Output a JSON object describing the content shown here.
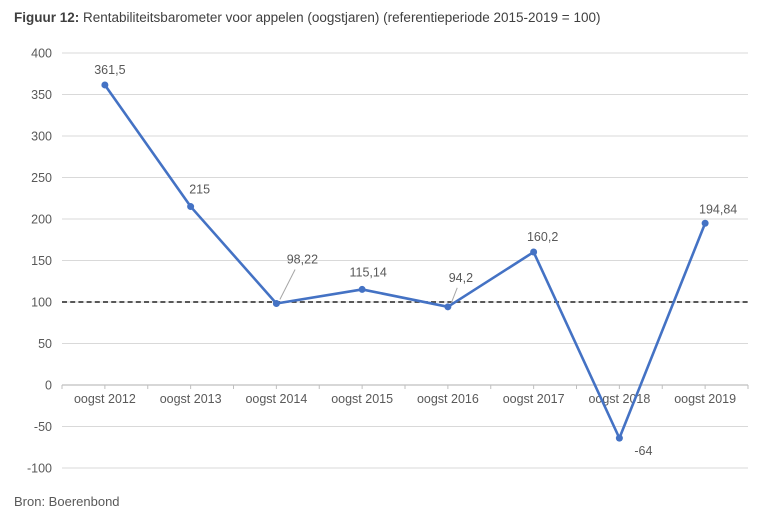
{
  "figure": {
    "label": "Figuur 12:",
    "title": " Rentabiliteitsbarometer voor appelen (oogstjaren) (referentieperiode 2015-2019 = 100)"
  },
  "source_note": "Bron: Boerenbond",
  "colors": {
    "series_line": "#4472C4",
    "marker": "#4472C4",
    "gridline": "#D9D9D9",
    "axis_line": "#BFBFBF",
    "axis_text": "#595959",
    "data_label_text": "#595959",
    "title_text": "#3F3F3F",
    "reference_line": "#404040",
    "leader_line": "#A6A6A6",
    "background": "#FFFFFF"
  },
  "chart_data": {
    "type": "line",
    "title": "Figuur 12: Rentabiliteitsbarometer voor appelen (oogstjaren) (referentieperiode 2015-2019 = 100)",
    "categories": [
      "oogst 2012",
      "oogst 2013",
      "oogst 2014",
      "oogst 2015",
      "oogst 2016",
      "oogst 2017",
      "oogst 2018",
      "oogst 2019"
    ],
    "series": [
      {
        "name": "rentabiliteitsbarometer appelen",
        "values": [
          361.5,
          215,
          98.22,
          115.14,
          94.2,
          160.2,
          -64,
          194.84
        ]
      }
    ],
    "point_labels": [
      "361,5",
      "215",
      "98,22",
      "115,14",
      "94,2",
      "160,2",
      "-64",
      "194,84"
    ],
    "yticks": [
      400,
      350,
      300,
      250,
      200,
      150,
      100,
      50,
      0,
      -50,
      -100
    ],
    "ylim": [
      -100,
      400
    ],
    "xlabel": "",
    "ylabel": "",
    "reference_line": {
      "value": 100,
      "style": "dashed"
    },
    "grid": true,
    "legend": "none",
    "marker": "circle"
  }
}
